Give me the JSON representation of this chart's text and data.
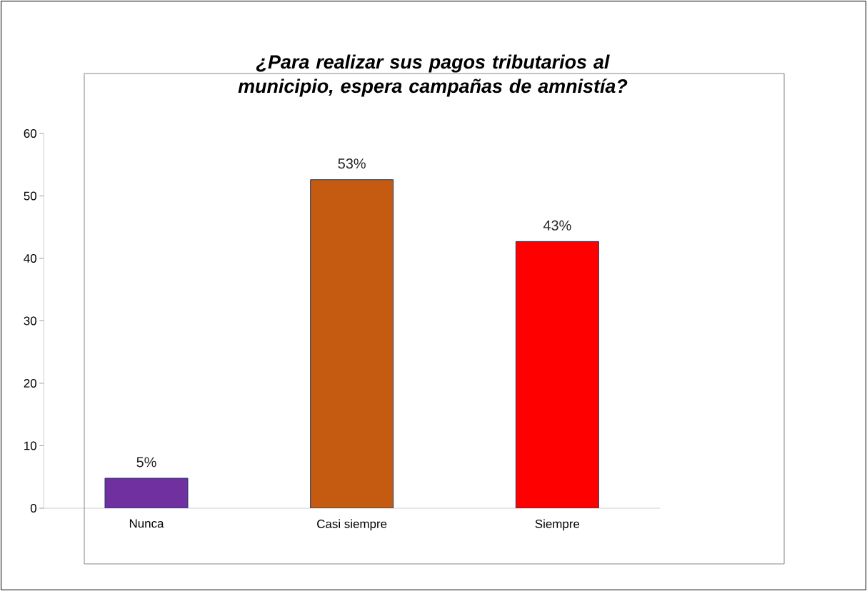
{
  "chart_data": {
    "type": "bar",
    "title": "¿Para realizar sus pagos tributarios al municipio, espera campañas de amnistía?",
    "categories": [
      "Nunca",
      "Casi siempre",
      "Siempre"
    ],
    "values": [
      4.8,
      52.6,
      42.7
    ],
    "value_labels": [
      "5%",
      "53%",
      "43%"
    ],
    "colors": [
      "#7030a0",
      "#c55a11",
      "#ff0000"
    ],
    "ylim": [
      0,
      60
    ],
    "yticks": [
      0,
      10,
      20,
      30,
      40,
      50,
      60
    ],
    "grid": false
  }
}
